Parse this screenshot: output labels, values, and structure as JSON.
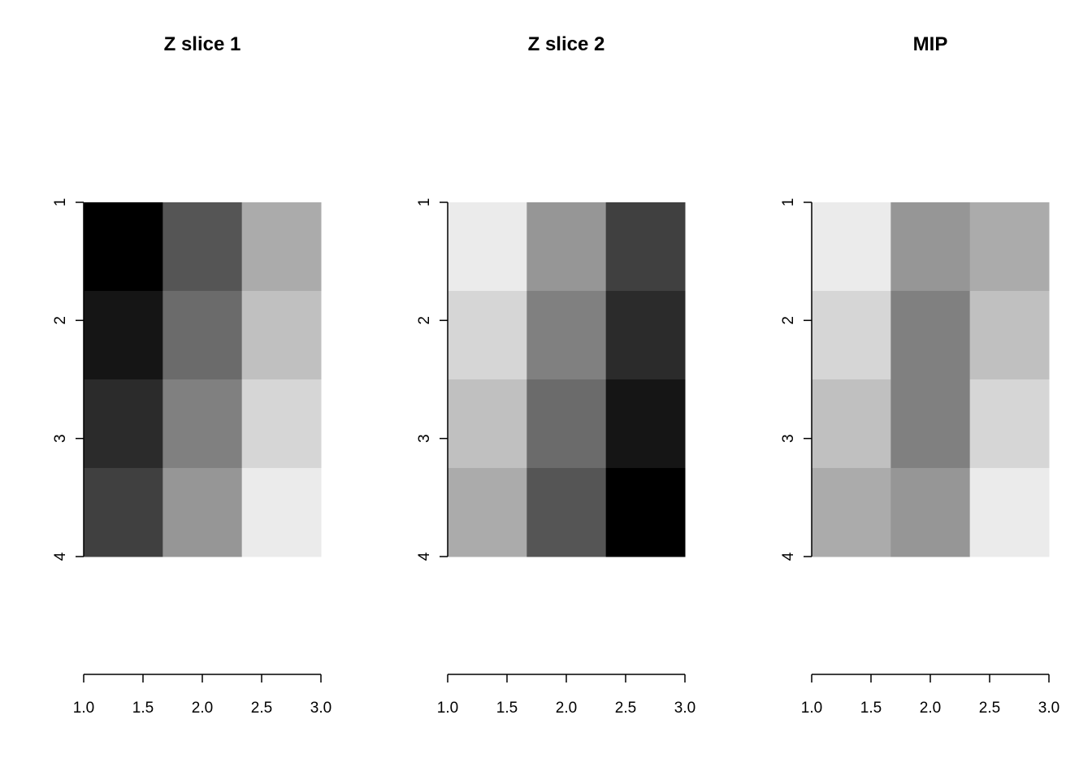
{
  "chart_data": [
    {
      "type": "heatmap",
      "title": "Z slice 1",
      "colormap": "grayscale",
      "x": [
        1,
        2,
        3
      ],
      "y": [
        1,
        2,
        3,
        4
      ],
      "xlim": [
        1.0,
        3.0
      ],
      "ylim": [
        4,
        1
      ],
      "x_ticks": [
        "1.0",
        "1.5",
        "2.0",
        "2.5",
        "3.0"
      ],
      "y_ticks": [
        "1",
        "2",
        "3",
        "4"
      ],
      "values": [
        [
          0,
          4,
          8
        ],
        [
          1,
          5,
          9
        ],
        [
          2,
          6,
          10
        ],
        [
          3,
          7,
          11
        ]
      ],
      "value_range": [
        0,
        11
      ]
    },
    {
      "type": "heatmap",
      "title": "Z slice 2",
      "colormap": "grayscale",
      "x": [
        1,
        2,
        3
      ],
      "y": [
        1,
        2,
        3,
        4
      ],
      "xlim": [
        1.0,
        3.0
      ],
      "ylim": [
        4,
        1
      ],
      "x_ticks": [
        "1.0",
        "1.5",
        "2.0",
        "2.5",
        "3.0"
      ],
      "y_ticks": [
        "1",
        "2",
        "3",
        "4"
      ],
      "values": [
        [
          11,
          7,
          3
        ],
        [
          10,
          6,
          2
        ],
        [
          9,
          5,
          1
        ],
        [
          8,
          4,
          0
        ]
      ],
      "value_range": [
        0,
        11
      ]
    },
    {
      "type": "heatmap",
      "title": "MIP",
      "colormap": "grayscale",
      "x": [
        1,
        2,
        3
      ],
      "y": [
        1,
        2,
        3,
        4
      ],
      "xlim": [
        1.0,
        3.0
      ],
      "ylim": [
        4,
        1
      ],
      "x_ticks": [
        "1.0",
        "1.5",
        "2.0",
        "2.5",
        "3.0"
      ],
      "y_ticks": [
        "1",
        "2",
        "3",
        "4"
      ],
      "values": [
        [
          11,
          7,
          8
        ],
        [
          10,
          6,
          9
        ],
        [
          9,
          6,
          10
        ],
        [
          8,
          7,
          11
        ]
      ],
      "value_range": [
        0,
        11
      ]
    }
  ]
}
